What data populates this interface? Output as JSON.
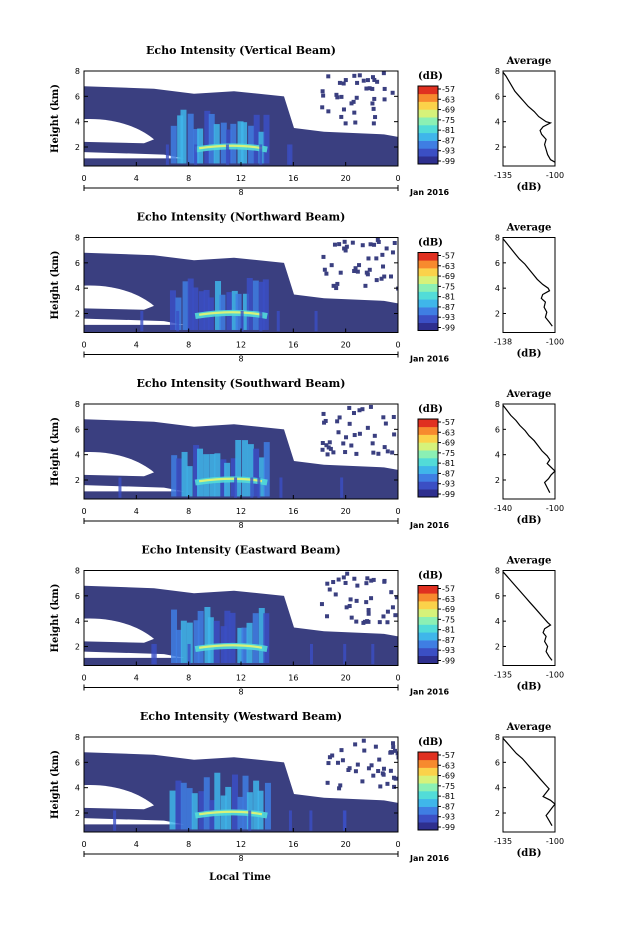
{
  "colors": {
    "background": "#3a3f80",
    "colormap": [
      "#2e2f8e",
      "#3b4fc4",
      "#3f7ee3",
      "#3fb6ea",
      "#52dcd8",
      "#8bf0b4",
      "#d6f27a",
      "#fbd24a",
      "#f78a2e",
      "#e03020"
    ]
  },
  "footer": {
    "xlabel": "Local Time"
  },
  "chart_data": [
    {
      "type": "heatmap",
      "title": "Echo Intensity (Vertical Beam)",
      "ylabel": "Height (km)",
      "ylim": [
        0.5,
        8
      ],
      "yticks": [
        "2",
        "4",
        "6",
        "8"
      ],
      "xticks": [
        "0",
        "4",
        "8",
        "12",
        "16",
        "20",
        "0"
      ],
      "xlim": [
        0,
        24
      ],
      "date_marker": "8",
      "date_label": "Jan 2016",
      "colorbar": {
        "unit": "(dB)",
        "ticks": [
          "-57",
          "-63",
          "-69",
          "-75",
          "-81",
          "-87",
          "-93",
          "-99"
        ]
      },
      "profile": {
        "title": "Average",
        "xlabel": "(dB)",
        "xticks": [
          "-135",
          "-100"
        ],
        "xlim": [
          -135,
          -100
        ],
        "yticks": [
          "2",
          "4",
          "6",
          "8"
        ],
        "points": [
          [
            -135,
            7.9
          ],
          [
            -133,
            7.6
          ],
          [
            -131,
            7.2
          ],
          [
            -129,
            6.8
          ],
          [
            -127,
            6.4
          ],
          [
            -124,
            6.0
          ],
          [
            -121,
            5.6
          ],
          [
            -118,
            5.2
          ],
          [
            -114,
            4.8
          ],
          [
            -111,
            4.4
          ],
          [
            -106,
            4.0
          ],
          [
            -103,
            3.9
          ],
          [
            -108,
            3.6
          ],
          [
            -110,
            3.3
          ],
          [
            -109,
            3.0
          ],
          [
            -106,
            2.6
          ],
          [
            -107,
            2.2
          ],
          [
            -106,
            1.8
          ],
          [
            -105,
            1.4
          ],
          [
            -103,
            1.0
          ],
          [
            -100,
            0.8
          ]
        ]
      }
    },
    {
      "type": "heatmap",
      "title": "Echo Intensity (Northward Beam)",
      "ylabel": "Height (km)",
      "ylim": [
        0.5,
        8
      ],
      "yticks": [
        "2",
        "4",
        "6",
        "8"
      ],
      "xticks": [
        "0",
        "4",
        "8",
        "12",
        "16",
        "20",
        "0"
      ],
      "xlim": [
        0,
        24
      ],
      "date_marker": "8",
      "date_label": "Jan 2016",
      "colorbar": {
        "unit": "(dB)",
        "ticks": [
          "-57",
          "-63",
          "-69",
          "-75",
          "-81",
          "-87",
          "-93",
          "-99"
        ]
      },
      "profile": {
        "title": "Average",
        "xlabel": "(dB)",
        "xticks": [
          "-138",
          "-100"
        ],
        "xlim": [
          -138,
          -100
        ],
        "yticks": [
          "2",
          "4",
          "6",
          "8"
        ],
        "points": [
          [
            -138,
            7.9
          ],
          [
            -135,
            7.5
          ],
          [
            -132,
            7.1
          ],
          [
            -129,
            6.7
          ],
          [
            -126,
            6.3
          ],
          [
            -122,
            5.9
          ],
          [
            -119,
            5.5
          ],
          [
            -116,
            5.1
          ],
          [
            -113,
            4.7
          ],
          [
            -109,
            4.3
          ],
          [
            -105,
            4.0
          ],
          [
            -104,
            3.8
          ],
          [
            -109,
            3.5
          ],
          [
            -110,
            3.2
          ],
          [
            -107,
            2.9
          ],
          [
            -108,
            2.5
          ],
          [
            -106,
            2.1
          ],
          [
            -107,
            1.7
          ],
          [
            -104,
            1.3
          ],
          [
            -102,
            1.0
          ]
        ]
      }
    },
    {
      "type": "heatmap",
      "title": "Echo Intensity (Southward Beam)",
      "ylabel": "Height (km)",
      "ylim": [
        0.5,
        8
      ],
      "yticks": [
        "2",
        "4",
        "6",
        "8"
      ],
      "xticks": [
        "0",
        "4",
        "8",
        "12",
        "16",
        "20",
        "0"
      ],
      "xlim": [
        0,
        24
      ],
      "date_marker": "8",
      "date_label": "Jan 2016",
      "colorbar": {
        "unit": "(dB)",
        "ticks": [
          "-57",
          "-63",
          "-69",
          "-75",
          "-81",
          "-87",
          "-93",
          "-99"
        ]
      },
      "profile": {
        "title": "Average",
        "xlabel": "(dB)",
        "xticks": [
          "-140",
          "-100"
        ],
        "xlim": [
          -140,
          -100
        ],
        "yticks": [
          "2",
          "4",
          "6",
          "8"
        ],
        "points": [
          [
            -140,
            7.9
          ],
          [
            -137,
            7.5
          ],
          [
            -134,
            7.1
          ],
          [
            -130,
            6.7
          ],
          [
            -127,
            6.3
          ],
          [
            -123,
            5.9
          ],
          [
            -120,
            5.5
          ],
          [
            -116,
            5.1
          ],
          [
            -113,
            4.7
          ],
          [
            -110,
            4.3
          ],
          [
            -106,
            3.9
          ],
          [
            -104,
            3.6
          ],
          [
            -106,
            3.3
          ],
          [
            -103,
            3.0
          ],
          [
            -100,
            2.7
          ],
          [
            -103,
            2.4
          ],
          [
            -105,
            2.1
          ],
          [
            -108,
            1.8
          ],
          [
            -106,
            1.4
          ],
          [
            -104,
            1.0
          ]
        ]
      }
    },
    {
      "type": "heatmap",
      "title": "Echo Intensity (Eastward Beam)",
      "ylabel": "Height (km)",
      "ylim": [
        0.5,
        8
      ],
      "yticks": [
        "2",
        "4",
        "6",
        "8"
      ],
      "xticks": [
        "0",
        "4",
        "8",
        "12",
        "16",
        "20",
        "0"
      ],
      "xlim": [
        0,
        24
      ],
      "date_marker": "8",
      "date_label": "Jan 2016",
      "colorbar": {
        "unit": "(dB)",
        "ticks": [
          "-57",
          "-63",
          "-69",
          "-75",
          "-81",
          "-87",
          "-93",
          "-99"
        ]
      },
      "profile": {
        "title": "Average",
        "xlabel": "(dB)",
        "xticks": [
          "-135",
          "-100"
        ],
        "xlim": [
          -135,
          -100
        ],
        "yticks": [
          "2",
          "4",
          "6",
          "8"
        ],
        "points": [
          [
            -135,
            7.9
          ],
          [
            -132,
            7.5
          ],
          [
            -129,
            7.1
          ],
          [
            -126,
            6.7
          ],
          [
            -123,
            6.3
          ],
          [
            -120,
            5.9
          ],
          [
            -117,
            5.5
          ],
          [
            -114,
            5.1
          ],
          [
            -111,
            4.7
          ],
          [
            -108,
            4.3
          ],
          [
            -105,
            3.9
          ],
          [
            -103,
            3.7
          ],
          [
            -107,
            3.4
          ],
          [
            -108,
            3.1
          ],
          [
            -106,
            2.8
          ],
          [
            -107,
            2.4
          ],
          [
            -105,
            2.0
          ],
          [
            -106,
            1.6
          ],
          [
            -104,
            1.2
          ],
          [
            -102,
            0.9
          ]
        ]
      }
    },
    {
      "type": "heatmap",
      "title": "Echo Intensity (Westward Beam)",
      "ylabel": "Height (km)",
      "ylim": [
        0.5,
        8
      ],
      "yticks": [
        "2",
        "4",
        "6",
        "8"
      ],
      "xticks": [
        "0",
        "4",
        "8",
        "12",
        "16",
        "20",
        "0"
      ],
      "xlim": [
        0,
        24
      ],
      "date_marker": "8",
      "date_label": "Jan 2016",
      "colorbar": {
        "unit": "(dB)",
        "ticks": [
          "-57",
          "-63",
          "-69",
          "-75",
          "-81",
          "-87",
          "-93",
          "-99"
        ]
      },
      "profile": {
        "title": "Average",
        "xlabel": "(dB)",
        "xticks": [
          "-135",
          "-100"
        ],
        "xlim": [
          -135,
          -100
        ],
        "yticks": [
          "2",
          "4",
          "6",
          "8"
        ],
        "points": [
          [
            -135,
            7.9
          ],
          [
            -132,
            7.5
          ],
          [
            -129,
            7.1
          ],
          [
            -126,
            6.7
          ],
          [
            -122,
            6.3
          ],
          [
            -119,
            5.9
          ],
          [
            -116,
            5.5
          ],
          [
            -113,
            5.1
          ],
          [
            -110,
            4.7
          ],
          [
            -107,
            4.3
          ],
          [
            -104,
            3.9
          ],
          [
            -106,
            3.6
          ],
          [
            -108,
            3.3
          ],
          [
            -103,
            3.0
          ],
          [
            -100,
            2.7
          ],
          [
            -102,
            2.4
          ],
          [
            -104,
            2.1
          ],
          [
            -106,
            1.8
          ],
          [
            -104,
            1.4
          ],
          [
            -102,
            1.0
          ]
        ]
      }
    }
  ]
}
